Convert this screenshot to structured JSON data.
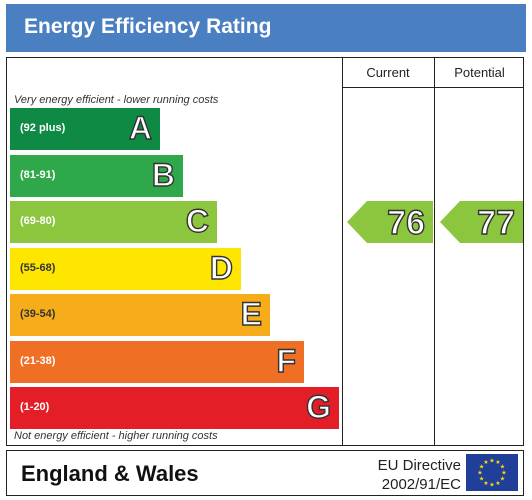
{
  "title": "Energy Efficiency Rating",
  "columns": {
    "current": "Current",
    "potential": "Potential"
  },
  "top_note": "Very energy efficient - lower running costs",
  "bottom_note": "Not energy efficient - higher running costs",
  "bands": [
    {
      "range": "(92 plus)",
      "letter": "A",
      "color": "#0e8a45"
    },
    {
      "range": "(81-91)",
      "letter": "B",
      "color": "#2ea84a"
    },
    {
      "range": "(69-80)",
      "letter": "C",
      "color": "#8cc63f"
    },
    {
      "range": "(55-68)",
      "letter": "D",
      "color": "#ffe600"
    },
    {
      "range": "(39-54)",
      "letter": "E",
      "color": "#f7ac1a"
    },
    {
      "range": "(21-38)",
      "letter": "F",
      "color": "#ef6f25"
    },
    {
      "range": "(1-20)",
      "letter": "G",
      "color": "#e41e26"
    }
  ],
  "current_rating": {
    "value": "76",
    "band": "C",
    "color": "#8cc63f"
  },
  "potential_rating": {
    "value": "77",
    "band": "C",
    "color": "#8cc63f"
  },
  "footer": {
    "region": "England & Wales",
    "directive_line1": "EU Directive",
    "directive_line2": "2002/91/EC",
    "flag_color": "#1f3f99",
    "star_color": "#ffdd00"
  }
}
